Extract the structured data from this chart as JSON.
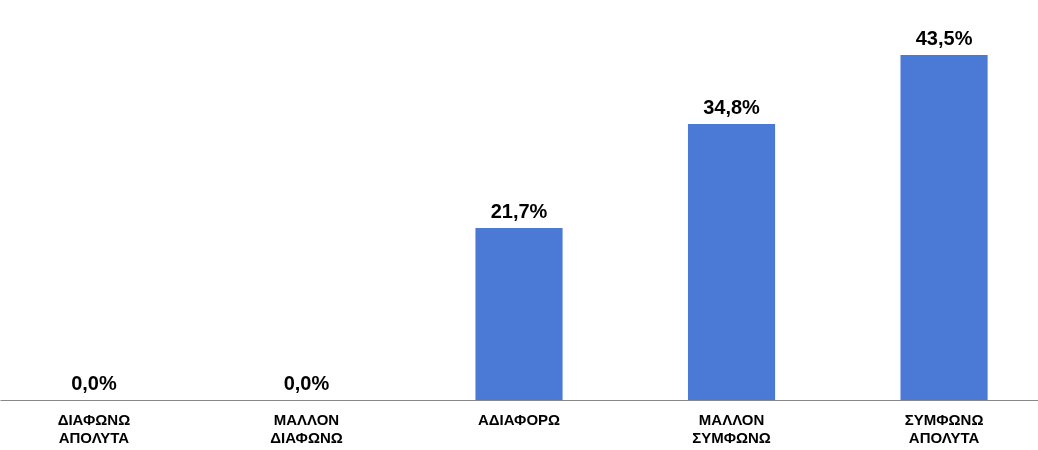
{
  "chart_data": {
    "type": "bar",
    "categories": [
      "ΔΙΑΦΩΝΩ ΑΠΟΛΥΤΑ",
      "ΜΑΛΛΟΝ ΔΙΑΦΩΝΩ",
      "ΑΔΙΑΦΟΡΩ",
      "ΜΑΛΛΟΝ ΣΥΜΦΩΝΩ",
      "ΣΥΜΦΩΝΩ ΑΠΟΛΥΤΑ"
    ],
    "values": [
      0.0,
      0.0,
      21.7,
      34.8,
      43.5
    ],
    "value_labels": [
      "0,0%",
      "0,0%",
      "21,7%",
      "34,8%",
      "43,5%"
    ],
    "color": "#4a7ad6"
  }
}
